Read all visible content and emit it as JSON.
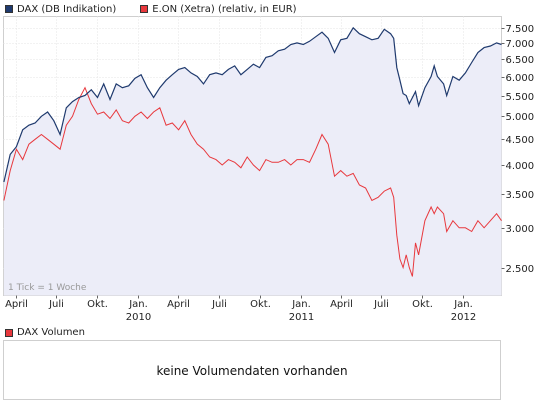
{
  "legend": {
    "series1": {
      "label": "DAX (DB Indikation)",
      "color": "#1f3a6e"
    },
    "series2": {
      "label": "E.ON (Xetra) (relativ, in EUR)",
      "color": "#e8383d"
    }
  },
  "tick_note": "1 Tick = 1 Woche",
  "volume": {
    "legend_label": "DAX Volumen",
    "legend_color": "#e8383d",
    "message": "keine Volumendaten vorhanden"
  },
  "chart_data": {
    "type": "line",
    "scale": "log",
    "ylim": [
      2200,
      7900
    ],
    "grid": true,
    "y_ticks": [
      2500,
      3000,
      3500,
      4000,
      4500,
      5000,
      5500,
      6000,
      6500,
      7000,
      7500
    ],
    "y_tick_labels": [
      "2.500",
      "3.000",
      "3.500",
      "4.000",
      "4.500",
      "5.000",
      "5.500",
      "6.000",
      "6.500",
      "7.000",
      "7.500"
    ],
    "x_range": [
      "2009-03-05",
      "2012-03-27"
    ],
    "x_ticks": [
      {
        "label": "April",
        "year": "",
        "date": "2009-04-01"
      },
      {
        "label": "Juli",
        "year": "",
        "date": "2009-07-01"
      },
      {
        "label": "Okt.",
        "year": "",
        "date": "2009-10-01"
      },
      {
        "label": "Jan.",
        "year": "2010",
        "date": "2010-01-01"
      },
      {
        "label": "April",
        "year": "",
        "date": "2010-04-01"
      },
      {
        "label": "Juli",
        "year": "",
        "date": "2010-07-01"
      },
      {
        "label": "Okt.",
        "year": "",
        "date": "2010-10-01"
      },
      {
        "label": "Jan.",
        "year": "2011",
        "date": "2011-01-01"
      },
      {
        "label": "April",
        "year": "",
        "date": "2011-04-01"
      },
      {
        "label": "Juli",
        "year": "",
        "date": "2011-07-01"
      },
      {
        "label": "Okt.",
        "year": "",
        "date": "2011-10-01"
      },
      {
        "label": "Jan.",
        "year": "2012",
        "date": "2012-01-01"
      }
    ],
    "series": [
      {
        "name": "DAX (DB Indikation)",
        "color": "#1f3a6e",
        "fill": "#ecedf8",
        "points": [
          [
            "2009-03-06",
            3700
          ],
          [
            "2009-03-20",
            4200
          ],
          [
            "2009-04-03",
            4350
          ],
          [
            "2009-04-17",
            4700
          ],
          [
            "2009-05-01",
            4800
          ],
          [
            "2009-05-15",
            4850
          ],
          [
            "2009-05-29",
            5000
          ],
          [
            "2009-06-12",
            5100
          ],
          [
            "2009-06-26",
            4900
          ],
          [
            "2009-07-10",
            4600
          ],
          [
            "2009-07-24",
            5200
          ],
          [
            "2009-08-07",
            5350
          ],
          [
            "2009-08-21",
            5450
          ],
          [
            "2009-09-04",
            5500
          ],
          [
            "2009-09-18",
            5650
          ],
          [
            "2009-10-02",
            5450
          ],
          [
            "2009-10-16",
            5800
          ],
          [
            "2009-10-30",
            5400
          ],
          [
            "2009-11-13",
            5800
          ],
          [
            "2009-11-27",
            5700
          ],
          [
            "2009-12-11",
            5750
          ],
          [
            "2009-12-25",
            5950
          ],
          [
            "2010-01-08",
            6050
          ],
          [
            "2010-01-22",
            5700
          ],
          [
            "2010-02-05",
            5450
          ],
          [
            "2010-02-19",
            5700
          ],
          [
            "2010-03-05",
            5900
          ],
          [
            "2010-03-19",
            6050
          ],
          [
            "2010-04-02",
            6200
          ],
          [
            "2010-04-16",
            6250
          ],
          [
            "2010-04-30",
            6100
          ],
          [
            "2010-05-14",
            6000
          ],
          [
            "2010-05-28",
            5800
          ],
          [
            "2010-06-11",
            6050
          ],
          [
            "2010-06-25",
            6100
          ],
          [
            "2010-07-09",
            6050
          ],
          [
            "2010-07-23",
            6200
          ],
          [
            "2010-08-06",
            6300
          ],
          [
            "2010-08-20",
            6050
          ],
          [
            "2010-09-03",
            6200
          ],
          [
            "2010-09-17",
            6350
          ],
          [
            "2010-10-01",
            6250
          ],
          [
            "2010-10-15",
            6550
          ],
          [
            "2010-10-29",
            6600
          ],
          [
            "2010-11-12",
            6750
          ],
          [
            "2010-11-26",
            6800
          ],
          [
            "2010-12-10",
            6950
          ],
          [
            "2010-12-24",
            7000
          ],
          [
            "2011-01-07",
            6950
          ],
          [
            "2011-01-21",
            7050
          ],
          [
            "2011-02-04",
            7200
          ],
          [
            "2011-02-18",
            7350
          ],
          [
            "2011-03-04",
            7150
          ],
          [
            "2011-03-18",
            6700
          ],
          [
            "2011-04-01",
            7100
          ],
          [
            "2011-04-15",
            7150
          ],
          [
            "2011-04-29",
            7500
          ],
          [
            "2011-05-13",
            7300
          ],
          [
            "2011-05-27",
            7200
          ],
          [
            "2011-06-10",
            7100
          ],
          [
            "2011-06-24",
            7150
          ],
          [
            "2011-07-08",
            7450
          ],
          [
            "2011-07-22",
            7300
          ],
          [
            "2011-07-29",
            7150
          ],
          [
            "2011-08-05",
            6250
          ],
          [
            "2011-08-12",
            5900
          ],
          [
            "2011-08-19",
            5550
          ],
          [
            "2011-08-26",
            5500
          ],
          [
            "2011-09-02",
            5300
          ],
          [
            "2011-09-16",
            5600
          ],
          [
            "2011-09-23",
            5250
          ],
          [
            "2011-10-07",
            5700
          ],
          [
            "2011-10-21",
            6000
          ],
          [
            "2011-10-28",
            6300
          ],
          [
            "2011-11-04",
            6000
          ],
          [
            "2011-11-18",
            5800
          ],
          [
            "2011-11-25",
            5500
          ],
          [
            "2011-12-09",
            6000
          ],
          [
            "2011-12-23",
            5900
          ],
          [
            "2012-01-06",
            6100
          ],
          [
            "2012-01-20",
            6400
          ],
          [
            "2012-02-03",
            6700
          ],
          [
            "2012-02-17",
            6850
          ],
          [
            "2012-03-02",
            6900
          ],
          [
            "2012-03-16",
            7000
          ],
          [
            "2012-03-27",
            6950
          ]
        ]
      },
      {
        "name": "E.ON (Xetra) (relativ, in EUR)",
        "color": "#e8383d",
        "points": [
          [
            "2009-03-06",
            3400
          ],
          [
            "2009-03-20",
            3900
          ],
          [
            "2009-04-03",
            4300
          ],
          [
            "2009-04-17",
            4100
          ],
          [
            "2009-05-01",
            4400
          ],
          [
            "2009-05-15",
            4500
          ],
          [
            "2009-05-29",
            4600
          ],
          [
            "2009-06-12",
            4500
          ],
          [
            "2009-06-26",
            4400
          ],
          [
            "2009-07-10",
            4300
          ],
          [
            "2009-07-24",
            4800
          ],
          [
            "2009-08-07",
            5000
          ],
          [
            "2009-08-21",
            5400
          ],
          [
            "2009-09-04",
            5700
          ],
          [
            "2009-09-18",
            5300
          ],
          [
            "2009-10-02",
            5050
          ],
          [
            "2009-10-16",
            5100
          ],
          [
            "2009-10-30",
            4950
          ],
          [
            "2009-11-13",
            5150
          ],
          [
            "2009-11-27",
            4900
          ],
          [
            "2009-12-11",
            4850
          ],
          [
            "2009-12-25",
            5000
          ],
          [
            "2010-01-08",
            5100
          ],
          [
            "2010-01-22",
            4950
          ],
          [
            "2010-02-05",
            5100
          ],
          [
            "2010-02-19",
            5200
          ],
          [
            "2010-03-05",
            4800
          ],
          [
            "2010-03-19",
            4850
          ],
          [
            "2010-04-02",
            4700
          ],
          [
            "2010-04-16",
            4900
          ],
          [
            "2010-04-30",
            4600
          ],
          [
            "2010-05-14",
            4400
          ],
          [
            "2010-05-28",
            4300
          ],
          [
            "2010-06-11",
            4150
          ],
          [
            "2010-06-25",
            4100
          ],
          [
            "2010-07-09",
            4000
          ],
          [
            "2010-07-23",
            4100
          ],
          [
            "2010-08-06",
            4050
          ],
          [
            "2010-08-20",
            3950
          ],
          [
            "2010-09-03",
            4150
          ],
          [
            "2010-09-17",
            4000
          ],
          [
            "2010-10-01",
            3900
          ],
          [
            "2010-10-15",
            4100
          ],
          [
            "2010-10-29",
            4050
          ],
          [
            "2010-11-12",
            4050
          ],
          [
            "2010-11-26",
            4100
          ],
          [
            "2010-12-10",
            4000
          ],
          [
            "2010-12-24",
            4100
          ],
          [
            "2011-01-07",
            4100
          ],
          [
            "2011-01-21",
            4050
          ],
          [
            "2011-02-04",
            4300
          ],
          [
            "2011-02-18",
            4600
          ],
          [
            "2011-03-04",
            4400
          ],
          [
            "2011-03-18",
            3800
          ],
          [
            "2011-04-01",
            3900
          ],
          [
            "2011-04-15",
            3800
          ],
          [
            "2011-04-29",
            3850
          ],
          [
            "2011-05-13",
            3650
          ],
          [
            "2011-05-27",
            3600
          ],
          [
            "2011-06-10",
            3400
          ],
          [
            "2011-06-24",
            3450
          ],
          [
            "2011-07-08",
            3550
          ],
          [
            "2011-07-22",
            3600
          ],
          [
            "2011-07-29",
            3450
          ],
          [
            "2011-08-05",
            2900
          ],
          [
            "2011-08-12",
            2600
          ],
          [
            "2011-08-19",
            2500
          ],
          [
            "2011-08-26",
            2650
          ],
          [
            "2011-09-02",
            2500
          ],
          [
            "2011-09-09",
            2400
          ],
          [
            "2011-09-16",
            2800
          ],
          [
            "2011-09-23",
            2650
          ],
          [
            "2011-10-07",
            3100
          ],
          [
            "2011-10-21",
            3300
          ],
          [
            "2011-10-28",
            3200
          ],
          [
            "2011-11-04",
            3300
          ],
          [
            "2011-11-18",
            3200
          ],
          [
            "2011-11-25",
            2950
          ],
          [
            "2011-12-09",
            3100
          ],
          [
            "2011-12-23",
            3000
          ],
          [
            "2012-01-06",
            3000
          ],
          [
            "2012-01-20",
            2950
          ],
          [
            "2012-02-03",
            3100
          ],
          [
            "2012-02-17",
            3000
          ],
          [
            "2012-03-02",
            3100
          ],
          [
            "2012-03-16",
            3200
          ],
          [
            "2012-03-27",
            3100
          ]
        ]
      }
    ]
  }
}
